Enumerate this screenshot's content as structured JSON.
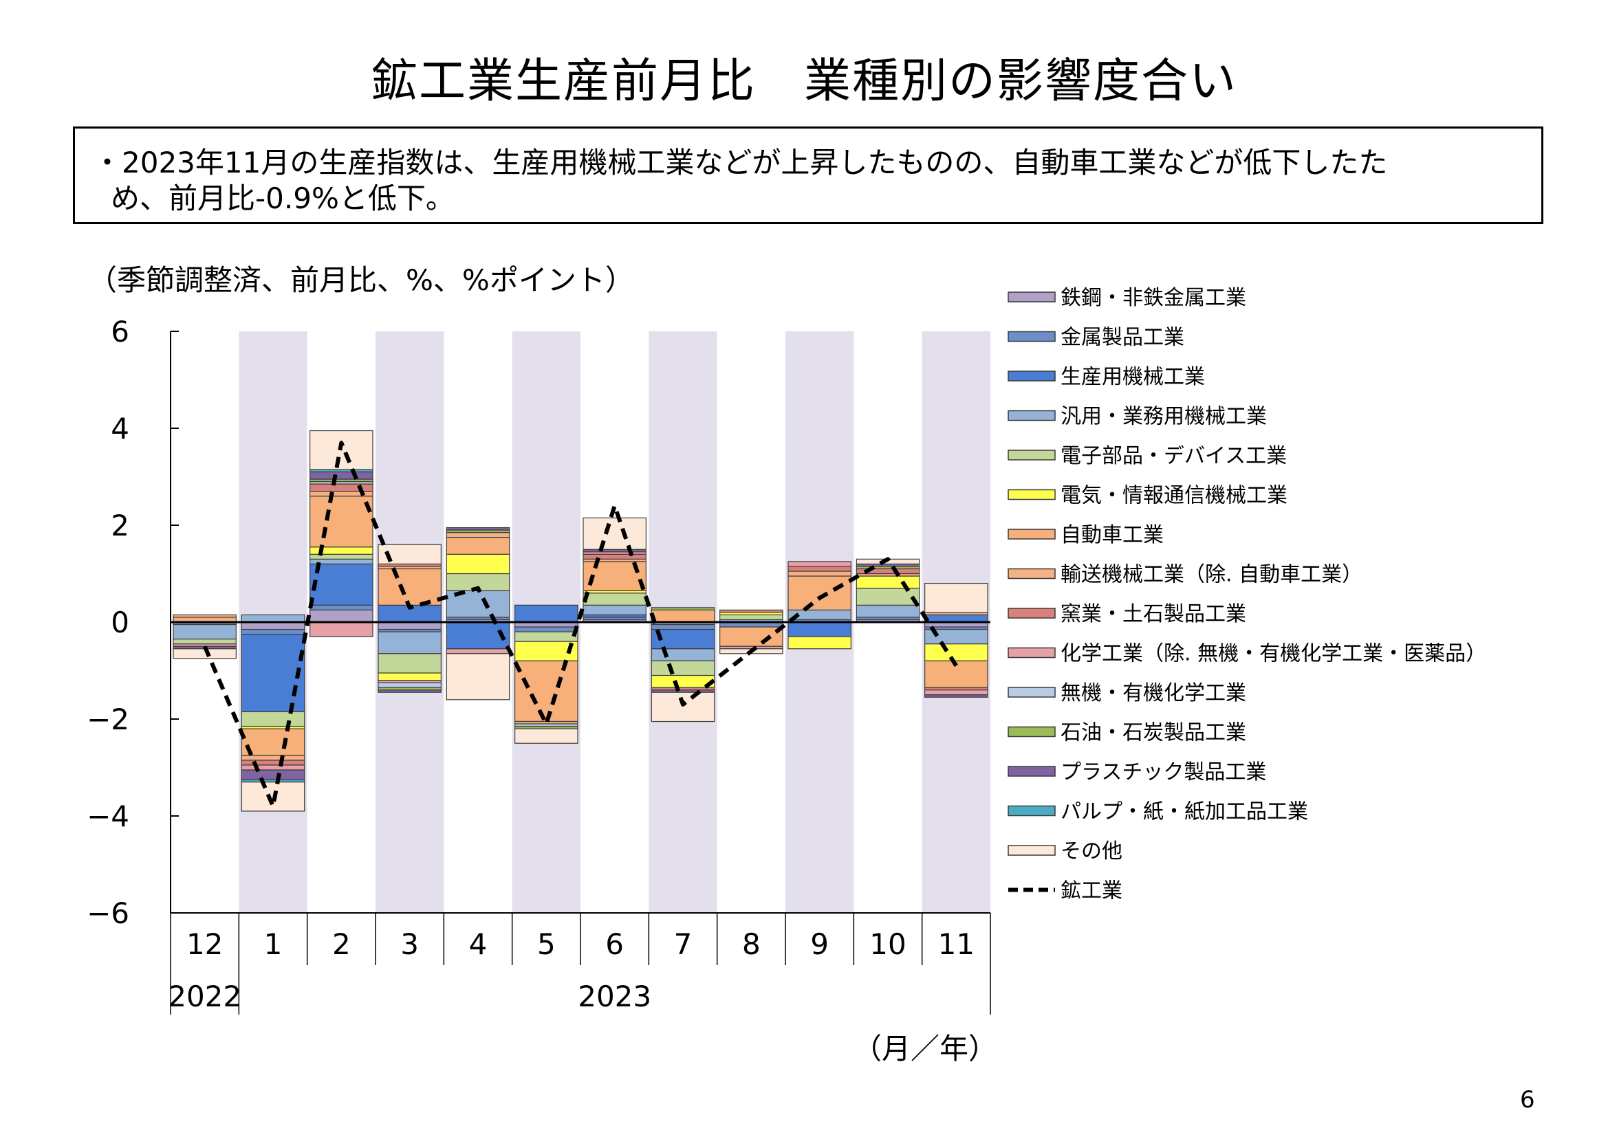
{
  "title": "鉱工業生産前月比　業種別の影響度合い",
  "summary": {
    "line1": "・2023年11月の生産指数は、生産用機械工業などが上昇したものの、自動車工業などが低下したた",
    "line2": "め、前月比-0.9%と低下。"
  },
  "unit_label": "（季節調整済、前月比、%、%ポイント）",
  "x_unit_label": "（月／年）",
  "page_number": "6",
  "colors": {
    "shade": "#E4DFEC",
    "line": "#000000"
  },
  "chart_data": {
    "type": "bar",
    "stacked": true,
    "ylim": [
      -6,
      6
    ],
    "yticks": [
      6,
      4,
      2,
      0,
      -2,
      -4,
      -6
    ],
    "ytick_labels": [
      "6",
      "4",
      "2",
      "0",
      "−2",
      "−4",
      "−6"
    ],
    "categories": [
      "12",
      "1",
      "2",
      "3",
      "4",
      "5",
      "6",
      "7",
      "8",
      "9",
      "10",
      "11"
    ],
    "year_labels": [
      {
        "label": "2022",
        "start": 0,
        "end": 0
      },
      {
        "label": "2023",
        "start": 1,
        "end": 11
      }
    ],
    "shaded_categories": [
      1,
      3,
      5,
      7,
      9,
      11
    ],
    "legend_position": "right",
    "series": [
      {
        "name": "鉄鋼・非鉄金属工業",
        "color": "#B1A0C7",
        "values": [
          0.0,
          -0.15,
          0.25,
          -0.15,
          0.05,
          -0.1,
          0.05,
          -0.05,
          0.0,
          0.0,
          0.05,
          -0.1
        ]
      },
      {
        "name": "金属製品工業",
        "color": "#6D8FC9",
        "values": [
          -0.05,
          -0.1,
          0.1,
          -0.05,
          0.05,
          -0.1,
          0.05,
          -0.1,
          -0.1,
          0.05,
          0.05,
          -0.05
        ]
      },
      {
        "name": "生産用機械工業",
        "color": "#4A7DD4",
        "values": [
          0.0,
          -1.6,
          0.85,
          0.35,
          -0.55,
          0.35,
          0.05,
          -0.4,
          0.0,
          -0.3,
          0.0,
          0.15
        ]
      },
      {
        "name": "汎用・業務用機械工業",
        "color": "#95B3D7",
        "values": [
          -0.3,
          0.15,
          0.1,
          -0.45,
          0.55,
          0.0,
          0.2,
          -0.25,
          0.05,
          0.2,
          0.25,
          -0.3
        ]
      },
      {
        "name": "電子部品・デバイス工業",
        "color": "#C4D79B",
        "values": [
          -0.1,
          -0.3,
          0.1,
          -0.4,
          0.35,
          -0.2,
          0.25,
          -0.3,
          0.1,
          0.0,
          0.35,
          0.0
        ]
      },
      {
        "name": "電気・情報通信機械工業",
        "color": "#FFFF4D",
        "values": [
          0.0,
          -0.05,
          0.15,
          -0.15,
          0.4,
          -0.4,
          0.05,
          -0.25,
          0.05,
          -0.25,
          0.25,
          -0.35
        ]
      },
      {
        "name": "自動車工業",
        "color": "#F7B07A",
        "values": [
          0.1,
          -0.55,
          1.05,
          0.75,
          0.35,
          -1.25,
          0.6,
          0.25,
          -0.4,
          0.7,
          0.0,
          -0.55
        ]
      },
      {
        "name": "輸送機械工業（除. 自動車工業）",
        "color": "#F4B183",
        "values": [
          0.05,
          -0.1,
          0.1,
          0.05,
          0.1,
          -0.05,
          0.05,
          0.0,
          0.0,
          0.1,
          0.05,
          0.05
        ]
      },
      {
        "name": "窯業・土石製品工業",
        "color": "#D9807A",
        "values": [
          0.0,
          -0.1,
          0.15,
          0.05,
          0.0,
          0.0,
          0.1,
          -0.05,
          0.05,
          0.1,
          0.1,
          -0.05
        ]
      },
      {
        "name": "化学工業（除. 無機・有機化学工業・医薬品）",
        "color": "#E6A1A6",
        "values": [
          -0.05,
          -0.1,
          -0.3,
          -0.05,
          -0.1,
          0.0,
          0.05,
          0.0,
          -0.05,
          0.1,
          0.0,
          -0.1
        ]
      },
      {
        "name": "無機・有機化学工業",
        "color": "#B8CCE4",
        "values": [
          0.0,
          0.0,
          0.05,
          -0.1,
          0.0,
          -0.05,
          0.0,
          0.0,
          0.0,
          0.0,
          0.0,
          0.0
        ]
      },
      {
        "name": "石油・石炭製品工業",
        "color": "#9BBB59",
        "values": [
          0.0,
          0.0,
          0.05,
          -0.05,
          0.05,
          -0.05,
          0.0,
          0.05,
          0.0,
          0.0,
          0.05,
          0.0
        ]
      },
      {
        "name": "プラスチック製品工業",
        "color": "#8064A2",
        "values": [
          -0.05,
          -0.2,
          0.15,
          -0.05,
          0.05,
          0.0,
          0.05,
          -0.05,
          0.0,
          0.0,
          0.05,
          -0.05
        ]
      },
      {
        "name": "パルプ・紙・紙加工品工業",
        "color": "#4BACC6",
        "values": [
          0.0,
          -0.05,
          0.05,
          0.0,
          0.0,
          0.0,
          0.0,
          0.0,
          0.0,
          0.0,
          0.0,
          0.0
        ]
      },
      {
        "name": "その他",
        "color": "#FDE9D9",
        "values": [
          -0.2,
          -0.6,
          0.8,
          0.4,
          -0.95,
          -0.3,
          0.65,
          -0.6,
          -0.1,
          0.0,
          0.1,
          0.6
        ]
      }
    ],
    "line_series": {
      "name": "鉱工業",
      "color": "#000000",
      "style": "dashed",
      "values": [
        -0.5,
        -3.8,
        3.7,
        0.3,
        0.7,
        -2.1,
        2.4,
        -1.7,
        -0.6,
        0.5,
        1.3,
        -0.9
      ]
    }
  }
}
